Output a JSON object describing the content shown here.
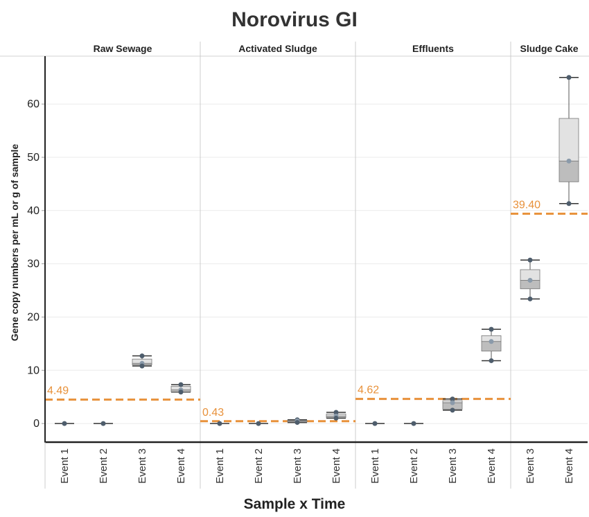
{
  "chart_data": {
    "type": "boxplot",
    "title": "Norovirus GI",
    "xlabel": "Sample x Time",
    "ylabel": "Gene copy numbers per mL or g of sample",
    "ylim": [
      -3.5,
      69
    ],
    "yticks": [
      0,
      10,
      20,
      30,
      40,
      50,
      60
    ],
    "grid": true,
    "colors": {
      "point": "#4e5d6c",
      "box_upper": "#e2e2e2",
      "box_lower": "#bdbdbd",
      "reference": "#e8913a"
    },
    "panels": [
      {
        "name": "Raw Sewage",
        "reference": 4.49,
        "reference_label": "4.49",
        "groups": [
          {
            "label": "Event 1",
            "min": 0,
            "q1": 0,
            "median": 0,
            "q3": 0,
            "max": 0
          },
          {
            "label": "Event 2",
            "min": 0,
            "q1": 0,
            "median": 0,
            "q3": 0,
            "max": 0
          },
          {
            "label": "Event 3",
            "min": 10.8,
            "q1": 11.0,
            "median": 11.3,
            "q3": 12.1,
            "max": 12.7
          },
          {
            "label": "Event 4",
            "min": 5.9,
            "q1": 5.95,
            "median": 6.3,
            "q3": 7.0,
            "max": 7.3
          }
        ]
      },
      {
        "name": "Activated Sludge",
        "reference": 0.43,
        "reference_label": "0.43",
        "groups": [
          {
            "label": "Event 1",
            "min": 0,
            "q1": 0,
            "median": 0,
            "q3": 0,
            "max": 0
          },
          {
            "label": "Event 2",
            "min": 0,
            "q1": 0,
            "median": 0,
            "q3": 0,
            "max": 0
          },
          {
            "label": "Event 3",
            "min": 0.2,
            "q1": 0.3,
            "median": 0.5,
            "q3": 0.6,
            "max": 0.7
          },
          {
            "label": "Event 4",
            "min": 1.0,
            "q1": 1.1,
            "median": 1.4,
            "q3": 1.8,
            "max": 2.1
          }
        ]
      },
      {
        "name": "Effluents",
        "reference": 4.62,
        "reference_label": "4.62",
        "groups": [
          {
            "label": "Event 1",
            "min": 0,
            "q1": 0,
            "median": 0,
            "q3": 0,
            "max": 0
          },
          {
            "label": "Event 2",
            "min": 0,
            "q1": 0,
            "median": 0,
            "q3": 0,
            "max": 0
          },
          {
            "label": "Event 3",
            "min": 2.5,
            "q1": 2.7,
            "median": 3.9,
            "q3": 4.3,
            "max": 4.6
          },
          {
            "label": "Event 4",
            "min": 11.8,
            "q1": 13.6,
            "median": 15.4,
            "q3": 16.5,
            "max": 17.7
          }
        ]
      },
      {
        "name": "Sludge Cake",
        "reference": 39.4,
        "reference_label": "39.40",
        "groups": [
          {
            "label": "Event 3",
            "min": 23.4,
            "q1": 25.3,
            "median": 26.9,
            "q3": 28.9,
            "max": 30.7
          },
          {
            "label": "Event 4",
            "min": 41.3,
            "q1": 45.4,
            "median": 49.3,
            "q3": 57.3,
            "max": 65.0
          }
        ]
      }
    ]
  }
}
